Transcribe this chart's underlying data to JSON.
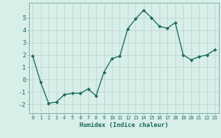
{
  "x": [
    0,
    1,
    2,
    3,
    4,
    5,
    6,
    7,
    8,
    9,
    10,
    11,
    12,
    13,
    14,
    15,
    16,
    17,
    18,
    19,
    20,
    21,
    22,
    23
  ],
  "y": [
    1.9,
    -0.2,
    -1.9,
    -1.8,
    -1.2,
    -1.1,
    -1.1,
    -0.75,
    -1.3,
    0.6,
    1.7,
    1.9,
    4.1,
    4.9,
    5.6,
    5.0,
    4.3,
    4.15,
    4.6,
    2.0,
    1.6,
    1.85,
    2.0,
    2.4
  ],
  "line_color": "#1a6b5a",
  "marker": "D",
  "markersize": 2.2,
  "linewidth": 1.0,
  "bg_color": "#d8eee8",
  "grid_color": "#bdd6cf",
  "xlabel": "Humidex (Indice chaleur)",
  "xlim": [
    -0.5,
    23.5
  ],
  "ylim": [
    -2.7,
    6.2
  ],
  "yticks": [
    -2,
    -1,
    0,
    1,
    2,
    3,
    4,
    5
  ],
  "xticks": [
    0,
    1,
    2,
    3,
    4,
    5,
    6,
    7,
    8,
    9,
    10,
    11,
    12,
    13,
    14,
    15,
    16,
    17,
    18,
    19,
    20,
    21,
    22,
    23
  ],
  "xlabel_fontsize": 6.5,
  "xtick_fontsize": 5.0,
  "ytick_fontsize": 6.5,
  "spine_color": "#7aaca0"
}
